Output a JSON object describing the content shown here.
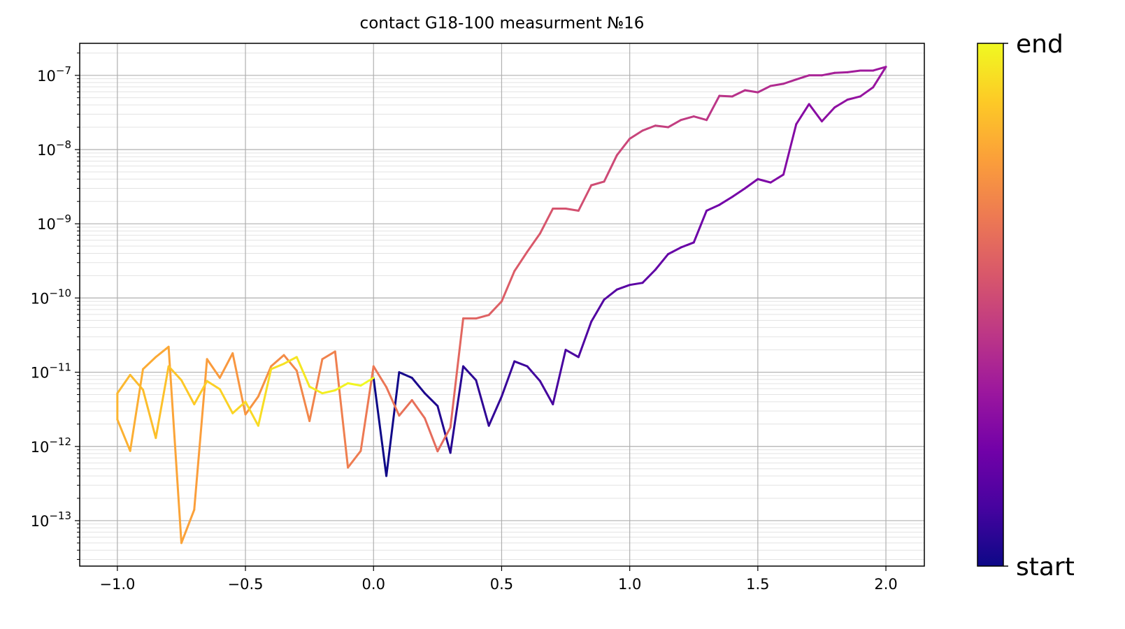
{
  "chart_data": {
    "type": "line",
    "title": "contact G18-100 measurment №16",
    "x": [
      0,
      0.05,
      0.1,
      0.15,
      0.2,
      0.25,
      0.3,
      0.35,
      0.4,
      0.45,
      0.5,
      0.55,
      0.6,
      0.65,
      0.7,
      0.75,
      0.8,
      0.85,
      0.9,
      0.95,
      1.0,
      1.05,
      1.1,
      1.15,
      1.2,
      1.25,
      1.3,
      1.35,
      1.4,
      1.45,
      1.5,
      1.55,
      1.6,
      1.65,
      1.7,
      1.75,
      1.8,
      1.85,
      1.9,
      1.95,
      2.0,
      1.95,
      1.9,
      1.85,
      1.8,
      1.75,
      1.7,
      1.65,
      1.6,
      1.55,
      1.5,
      1.45,
      1.4,
      1.35,
      1.3,
      1.25,
      1.2,
      1.15,
      1.1,
      1.05,
      1.0,
      0.95,
      0.9,
      0.85,
      0.8,
      0.75,
      0.7,
      0.65,
      0.6,
      0.55,
      0.5,
      0.45,
      0.4,
      0.35,
      0.3,
      0.25,
      0.2,
      0.15,
      0.1,
      0.05,
      0,
      -0.05,
      -0.1,
      -0.15,
      -0.2,
      -0.25,
      -0.3,
      -0.35,
      -0.4,
      -0.45,
      -0.5,
      -0.55,
      -0.6,
      -0.65,
      -0.7,
      -0.75,
      -0.8,
      -0.85,
      -0.9,
      -0.95,
      -1.0,
      -1.0,
      -0.95,
      -0.9,
      -0.85,
      -0.8,
      -0.75,
      -0.7,
      -0.65,
      -0.6,
      -0.55,
      -0.5,
      -0.45,
      -0.4,
      -0.35,
      -0.3,
      -0.25,
      -0.2,
      -0.15,
      -0.1,
      -0.05,
      0
    ],
    "values": [
      8.4e-12,
      4e-13,
      1e-11,
      8.4e-12,
      5.2e-12,
      3.5e-12,
      8.2e-13,
      1.2e-11,
      7.8e-12,
      1.9e-12,
      4.7e-12,
      1.4e-11,
      1.2e-11,
      7.6e-12,
      3.7e-12,
      2e-11,
      1.6e-11,
      4.8e-11,
      9.5e-11,
      1.3e-10,
      1.5e-10,
      1.6e-10,
      2.4e-10,
      3.9e-10,
      4.8e-10,
      5.6e-10,
      1.5e-09,
      1.8e-09,
      2.3e-09,
      3e-09,
      4e-09,
      3.6e-09,
      4.6e-09,
      2.2e-08,
      4.1e-08,
      2.4e-08,
      3.7e-08,
      4.7e-08,
      5.2e-08,
      6.9e-08,
      1.3e-07,
      1.16e-07,
      1.16e-07,
      1.1e-07,
      1.08e-07,
      1e-07,
      1e-07,
      8.8e-08,
      7.7e-08,
      7.2e-08,
      5.9e-08,
      6.3e-08,
      5.2e-08,
      5.3e-08,
      2.5e-08,
      2.8e-08,
      2.5e-08,
      2e-08,
      2.1e-08,
      1.8e-08,
      1.4e-08,
      8.4e-09,
      3.7e-09,
      3.3e-09,
      1.5e-09,
      1.6e-09,
      1.6e-09,
      7.4e-10,
      4.2e-10,
      2.3e-10,
      9e-11,
      5.9e-11,
      5.3e-11,
      5.3e-11,
      1.8e-12,
      8.6e-13,
      2.4e-12,
      4.2e-12,
      2.6e-12,
      6.3e-12,
      1.2e-11,
      8.7e-13,
      5.2e-13,
      1.9e-11,
      1.5e-11,
      2.2e-12,
      1.05e-11,
      1.7e-11,
      1.2e-11,
      4.7e-12,
      2.7e-12,
      1.8e-11,
      8.4e-12,
      1.5e-11,
      1.4e-13,
      5e-14,
      2.2e-11,
      1.6e-11,
      1.1e-11,
      8.7e-13,
      2.3e-12,
      5.2e-12,
      9.2e-12,
      5.8e-12,
      1.3e-12,
      1.2e-11,
      7.8e-12,
      3.7e-12,
      7.6e-12,
      5.9e-12,
      2.8e-12,
      4e-12,
      1.9e-12,
      1.1e-11,
      1.3e-11,
      1.6e-11,
      6.4e-12,
      5.2e-12,
      5.7e-12,
      7.1e-12,
      6.6e-12,
      8.4e-12
    ],
    "colormap": [
      "#0d0887",
      "#46039f",
      "#7201a8",
      "#9c179e",
      "#bd3786",
      "#d8576b",
      "#ed7953",
      "#fb9f3a",
      "#fdca26",
      "#f0f921"
    ],
    "xlim": [
      -1.147,
      2.15
    ],
    "xticks": [
      {
        "value": -1.0,
        "label": "−1.0"
      },
      {
        "value": -0.5,
        "label": "−0.5"
      },
      {
        "value": 0,
        "label": "0.0"
      },
      0.5,
      {
        "value": 1.0,
        "label": "1.0"
      },
      1.5,
      {
        "value": 2.0,
        "label": "2.0"
      }
    ],
    "ylim": [
      2.44e-14,
      2.7e-07
    ],
    "ylog": true,
    "yticks": [
      {
        "value": 1e-13,
        "label": "10",
        "exponent": "−13"
      },
      {
        "value": 1e-12,
        "label": "10",
        "exponent": "−12"
      },
      {
        "value": 1e-11,
        "label": "10",
        "exponent": "−11"
      },
      {
        "value": 1e-10,
        "label": "10",
        "exponent": "−10"
      },
      {
        "value": 1e-09,
        "label": "10",
        "exponent": "−9"
      },
      {
        "value": 1e-08,
        "label": "10",
        "exponent": "−8"
      },
      {
        "value": 1e-07,
        "label": "10",
        "exponent": "−7"
      }
    ],
    "grid": true,
    "colorbar": {
      "labels": [
        "start",
        "end"
      ]
    }
  }
}
